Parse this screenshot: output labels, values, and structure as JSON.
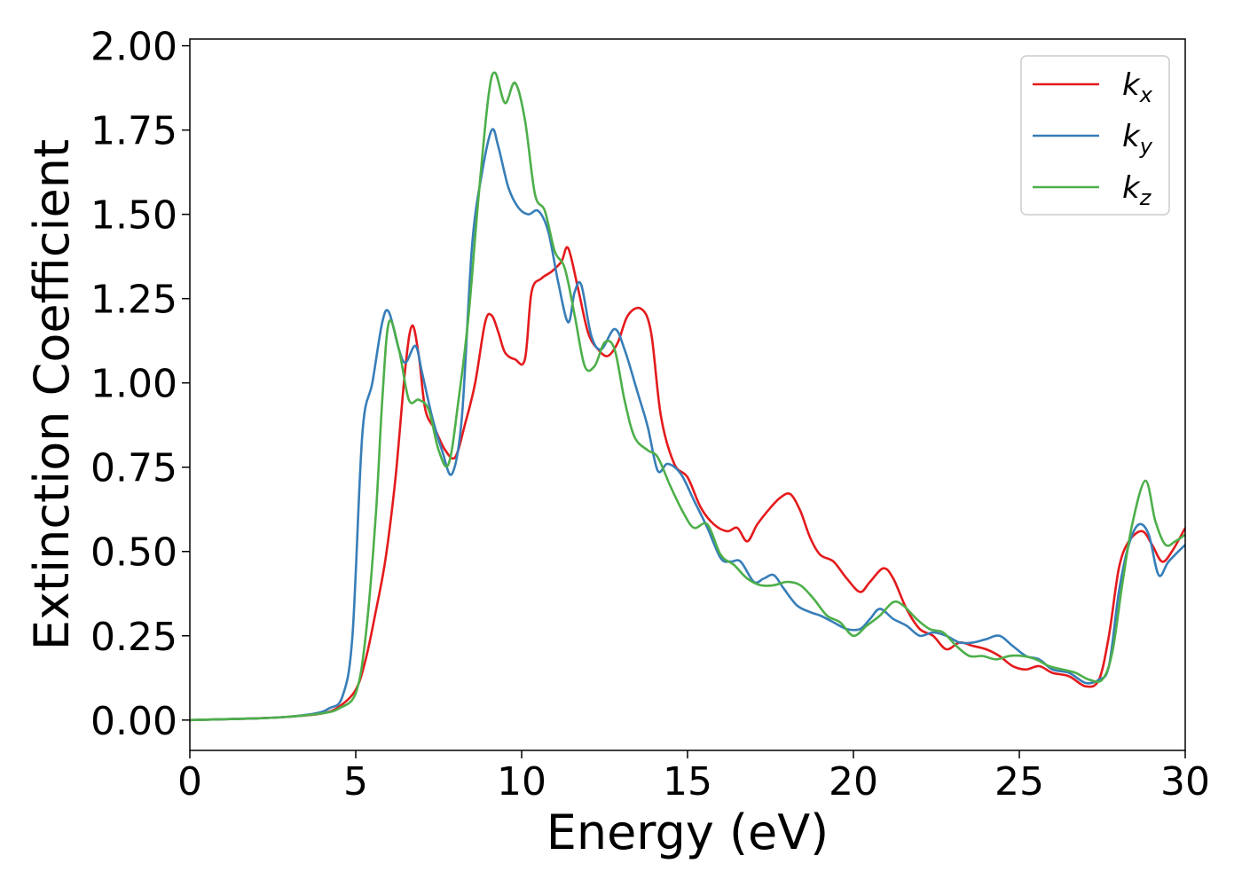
{
  "chart_data": {
    "type": "line",
    "title": "",
    "xlabel": "Energy (eV)",
    "ylabel": "Extinction Coefficient",
    "xlim": [
      0,
      30
    ],
    "ylim": [
      -0.09,
      2.02
    ],
    "xticks": [
      0,
      5,
      10,
      15,
      20,
      25,
      30
    ],
    "xtick_labels": [
      "0",
      "5",
      "10",
      "15",
      "20",
      "25",
      "30"
    ],
    "yticks": [
      0,
      0.25,
      0.5,
      0.75,
      1.0,
      1.25,
      1.5,
      1.75,
      2.0
    ],
    "ytick_labels": [
      "0.00",
      "0.25",
      "0.50",
      "0.75",
      "1.00",
      "1.25",
      "1.50",
      "1.75",
      "2.00"
    ],
    "grid": false,
    "legend_position": "top-right",
    "series": [
      {
        "name": "k",
        "subscript": "x",
        "color": "#e41a1c",
        "x": [
          0,
          2,
          3,
          4,
          4.5,
          5,
          5.3,
          5.6,
          5.9,
          6.2,
          6.5,
          6.7,
          6.9,
          7.1,
          7.4,
          7.7,
          8.0,
          8.3,
          8.6,
          8.9,
          9.1,
          9.3,
          9.5,
          9.8,
          10.1,
          10.3,
          10.6,
          10.9,
          11.2,
          11.4,
          11.7,
          12.0,
          12.3,
          12.6,
          12.9,
          13.2,
          13.6,
          13.9,
          14.2,
          14.6,
          15.0,
          15.4,
          15.8,
          16.2,
          16.5,
          16.8,
          17.1,
          17.5,
          17.8,
          18.1,
          18.4,
          18.7,
          19.0,
          19.4,
          19.8,
          20.2,
          20.5,
          20.9,
          21.2,
          21.6,
          22.0,
          22.4,
          22.8,
          23.2,
          23.6,
          24.0,
          24.4,
          24.8,
          25.2,
          25.6,
          26.0,
          26.5,
          27.0,
          27.4,
          27.7,
          28.0,
          28.3,
          28.7,
          29.0,
          29.3,
          29.6,
          30.0
        ],
        "y": [
          0.0,
          0.005,
          0.01,
          0.02,
          0.04,
          0.09,
          0.18,
          0.32,
          0.48,
          0.72,
          1.05,
          1.17,
          1.08,
          0.92,
          0.86,
          0.8,
          0.78,
          0.88,
          1.0,
          1.18,
          1.2,
          1.15,
          1.09,
          1.07,
          1.07,
          1.27,
          1.31,
          1.33,
          1.36,
          1.4,
          1.28,
          1.15,
          1.1,
          1.08,
          1.12,
          1.2,
          1.22,
          1.15,
          0.9,
          0.76,
          0.72,
          0.63,
          0.58,
          0.56,
          0.57,
          0.53,
          0.58,
          0.63,
          0.66,
          0.67,
          0.62,
          0.54,
          0.49,
          0.47,
          0.42,
          0.38,
          0.41,
          0.45,
          0.42,
          0.33,
          0.27,
          0.25,
          0.21,
          0.23,
          0.22,
          0.21,
          0.19,
          0.16,
          0.15,
          0.16,
          0.14,
          0.13,
          0.1,
          0.12,
          0.25,
          0.45,
          0.53,
          0.56,
          0.52,
          0.47,
          0.5,
          0.57
        ]
      },
      {
        "name": "k",
        "subscript": "y",
        "color": "#377eb8",
        "x": [
          0,
          2,
          3,
          3.8,
          4.2,
          4.6,
          4.9,
          5.2,
          5.5,
          5.8,
          6.0,
          6.3,
          6.5,
          6.8,
          7.0,
          7.3,
          7.6,
          7.9,
          8.2,
          8.5,
          8.8,
          9.1,
          9.3,
          9.6,
          9.9,
          10.2,
          10.5,
          10.8,
          11.1,
          11.4,
          11.6,
          11.8,
          12.1,
          12.4,
          12.8,
          13.1,
          13.5,
          13.8,
          14.1,
          14.4,
          14.8,
          15.2,
          15.6,
          16.0,
          16.3,
          16.6,
          17.0,
          17.3,
          17.6,
          17.9,
          18.3,
          18.7,
          19.0,
          19.4,
          19.8,
          20.2,
          20.5,
          20.8,
          21.2,
          21.6,
          22.0,
          22.4,
          22.8,
          23.2,
          23.6,
          24.0,
          24.4,
          24.8,
          25.2,
          25.6,
          26.0,
          26.5,
          27.0,
          27.4,
          27.7,
          28.0,
          28.3,
          28.6,
          28.9,
          29.2,
          29.5,
          30.0
        ],
        "y": [
          0.0,
          0.005,
          0.01,
          0.02,
          0.035,
          0.07,
          0.25,
          0.85,
          1.0,
          1.18,
          1.21,
          1.1,
          1.06,
          1.11,
          1.03,
          0.9,
          0.8,
          0.73,
          0.9,
          1.4,
          1.62,
          1.75,
          1.7,
          1.58,
          1.52,
          1.5,
          1.51,
          1.45,
          1.3,
          1.18,
          1.27,
          1.29,
          1.14,
          1.1,
          1.16,
          1.1,
          0.97,
          0.87,
          0.74,
          0.76,
          0.73,
          0.65,
          0.57,
          0.48,
          0.47,
          0.47,
          0.41,
          0.42,
          0.43,
          0.39,
          0.34,
          0.32,
          0.31,
          0.29,
          0.27,
          0.27,
          0.3,
          0.33,
          0.3,
          0.28,
          0.25,
          0.26,
          0.25,
          0.23,
          0.23,
          0.24,
          0.25,
          0.22,
          0.19,
          0.18,
          0.15,
          0.14,
          0.11,
          0.12,
          0.16,
          0.38,
          0.52,
          0.58,
          0.55,
          0.43,
          0.47,
          0.52
        ]
      },
      {
        "name": "k",
        "subscript": "z",
        "color": "#4daf4a",
        "x": [
          0,
          2,
          3,
          4,
          4.5,
          5,
          5.3,
          5.6,
          5.8,
          6.0,
          6.3,
          6.6,
          6.9,
          7.2,
          7.5,
          7.8,
          8.1,
          8.4,
          8.7,
          9.0,
          9.2,
          9.5,
          9.8,
          10.1,
          10.4,
          10.7,
          11.0,
          11.3,
          11.6,
          11.9,
          12.2,
          12.5,
          12.8,
          13.1,
          13.4,
          13.8,
          14.1,
          14.5,
          14.9,
          15.2,
          15.6,
          16.0,
          16.4,
          16.8,
          17.2,
          17.6,
          18.0,
          18.4,
          18.8,
          19.2,
          19.6,
          20.0,
          20.4,
          20.8,
          21.2,
          21.5,
          21.9,
          22.3,
          22.7,
          23.1,
          23.5,
          23.9,
          24.3,
          24.7,
          25.1,
          25.5,
          25.9,
          26.3,
          26.7,
          27.1,
          27.5,
          27.8,
          28.1,
          28.4,
          28.8,
          29.1,
          29.4,
          29.7,
          30.0
        ],
        "y": [
          0.0,
          0.005,
          0.01,
          0.02,
          0.035,
          0.08,
          0.25,
          0.6,
          0.95,
          1.18,
          1.1,
          0.95,
          0.95,
          0.92,
          0.8,
          0.76,
          0.95,
          1.2,
          1.55,
          1.85,
          1.92,
          1.83,
          1.89,
          1.78,
          1.56,
          1.51,
          1.39,
          1.34,
          1.2,
          1.05,
          1.05,
          1.12,
          1.1,
          0.95,
          0.84,
          0.8,
          0.78,
          0.69,
          0.61,
          0.57,
          0.58,
          0.49,
          0.46,
          0.42,
          0.4,
          0.4,
          0.41,
          0.4,
          0.36,
          0.31,
          0.29,
          0.25,
          0.28,
          0.31,
          0.35,
          0.34,
          0.3,
          0.27,
          0.26,
          0.22,
          0.19,
          0.19,
          0.18,
          0.19,
          0.19,
          0.18,
          0.16,
          0.15,
          0.14,
          0.12,
          0.12,
          0.2,
          0.4,
          0.58,
          0.71,
          0.59,
          0.52,
          0.53,
          0.55
        ]
      }
    ]
  }
}
